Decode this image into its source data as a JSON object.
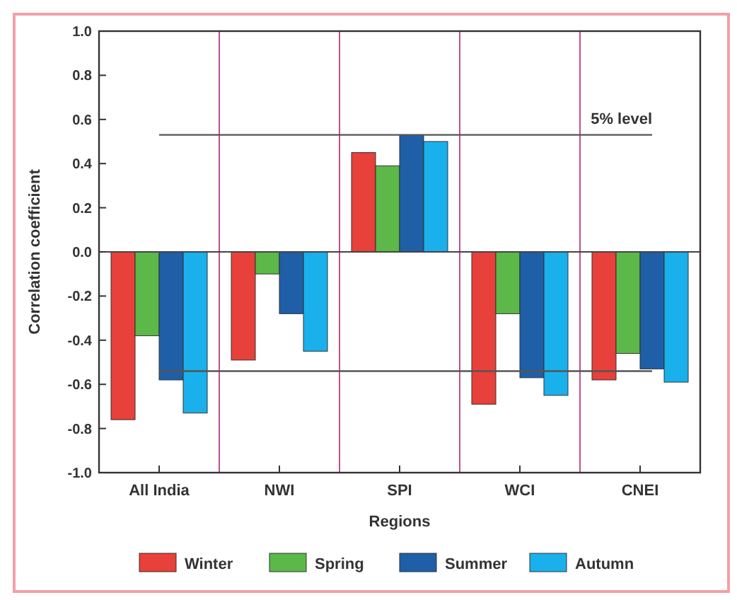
{
  "chart_data": {
    "type": "bar",
    "xlabel": "Regions",
    "ylabel": "Correlation coefficient",
    "categories": [
      "All India",
      "NWI",
      "SPI",
      "WCI",
      "CNEI"
    ],
    "series": [
      {
        "name": "Winter",
        "color": "#e8403a",
        "values": [
          -0.76,
          -0.49,
          0.45,
          -0.69,
          -0.58
        ]
      },
      {
        "name": "Spring",
        "color": "#5cb848",
        "values": [
          -0.38,
          -0.1,
          0.39,
          -0.28,
          -0.46
        ]
      },
      {
        "name": "Summer",
        "color": "#1f5fa8",
        "values": [
          -0.58,
          -0.28,
          0.53,
          -0.57,
          -0.53
        ]
      },
      {
        "name": "Autumn",
        "color": "#1ab0ec",
        "values": [
          -0.73,
          -0.45,
          0.5,
          -0.65,
          -0.59
        ]
      }
    ],
    "ylim": [
      -1,
      1
    ],
    "yticks": [
      {
        "value": -1,
        "label": "-1.0"
      },
      {
        "value": -0.8,
        "label": "-0.8"
      },
      {
        "value": -0.6,
        "label": "-0.6"
      },
      {
        "value": -0.4,
        "label": "-0.4"
      },
      {
        "value": -0.2,
        "label": "-0.2"
      },
      {
        "value": 0,
        "label": "0.0"
      },
      {
        "value": 0.2,
        "label": "0.2"
      },
      {
        "value": 0.4,
        "label": "0.4"
      },
      {
        "value": 0.6,
        "label": "0.6"
      },
      {
        "value": 0.8,
        "label": "0.8"
      },
      {
        "value": 1,
        "label": "1.0"
      }
    ],
    "ref_lines": [
      {
        "axis": "y",
        "value": 0.53,
        "label": "5% level",
        "color": "#555555"
      },
      {
        "axis": "y",
        "value": -0.54,
        "label": null,
        "color": "#555555"
      }
    ],
    "grid": false,
    "legend": "bottom"
  }
}
